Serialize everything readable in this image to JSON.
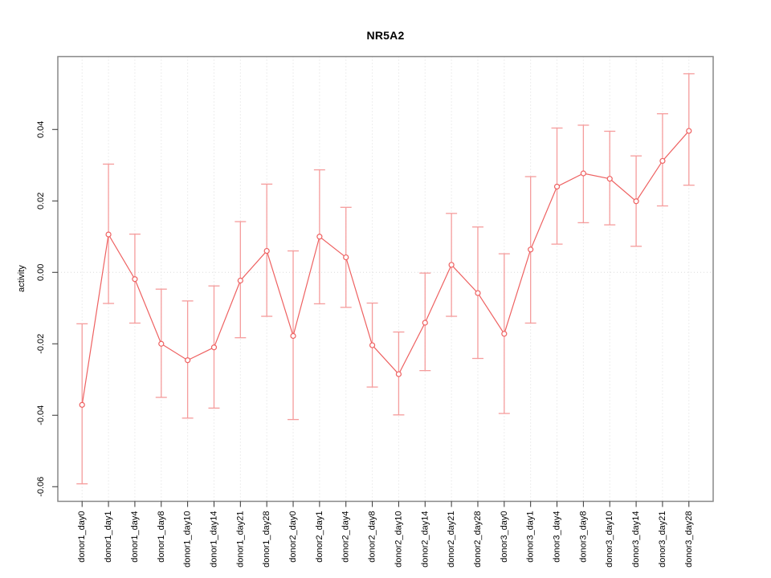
{
  "chart_data": {
    "type": "line",
    "title": "NR5A2",
    "xlabel": "",
    "ylabel": "activity",
    "categories": [
      "donor1_day0",
      "donor1_day1",
      "donor1_day4",
      "donor1_day8",
      "donor1_day10",
      "donor1_day14",
      "donor1_day21",
      "donor1_day28",
      "donor2_day0",
      "donor2_day1",
      "donor2_day4",
      "donor2_day8",
      "donor2_day10",
      "donor2_day14",
      "donor2_day21",
      "donor2_day28",
      "donor3_day0",
      "donor3_day1",
      "donor3_day4",
      "donor3_day8",
      "donor3_day10",
      "donor3_day14",
      "donor3_day21",
      "donor3_day28"
    ],
    "series": [
      {
        "name": "activity",
        "values": [
          -0.0371,
          0.0106,
          -0.0019,
          -0.02,
          -0.0246,
          -0.021,
          -0.0023,
          0.006,
          -0.0178,
          0.01,
          0.0042,
          -0.0204,
          -0.0285,
          -0.0141,
          0.0021,
          -0.0058,
          -0.0172,
          0.0064,
          0.024,
          0.0277,
          0.0262,
          0.0199,
          0.0312,
          0.0396
        ],
        "upper": [
          -0.0144,
          0.0303,
          0.0107,
          -0.0047,
          -0.008,
          -0.0038,
          0.0142,
          0.0247,
          0.006,
          0.0287,
          0.0182,
          -0.0086,
          -0.0167,
          -0.0002,
          0.0165,
          0.0127,
          0.0052,
          0.0268,
          0.0404,
          0.0412,
          0.0395,
          0.0326,
          0.0444,
          0.0556
        ],
        "lower": [
          -0.0592,
          -0.0087,
          -0.0142,
          -0.035,
          -0.0408,
          -0.038,
          -0.0183,
          -0.0123,
          -0.0412,
          -0.0088,
          -0.0098,
          -0.0321,
          -0.0399,
          -0.0275,
          -0.0123,
          -0.0241,
          -0.0395,
          -0.0142,
          0.0079,
          0.0139,
          0.0133,
          0.0073,
          0.0186,
          0.0244
        ]
      }
    ],
    "yticks": [
      -0.06,
      -0.04,
      -0.02,
      0.0,
      0.02,
      0.04
    ],
    "ytick_labels": [
      "-0.06",
      "-0.04",
      "-0.02",
      "0.00",
      "0.02",
      "0.04"
    ],
    "ylim": [
      -0.0641,
      0.0604
    ],
    "grid": {
      "vertical_per_category": true,
      "zero_line": true,
      "style": "dotted"
    },
    "legend_position": "none",
    "colors": {
      "line": "#ee6161",
      "error_bar": "#f59c9c",
      "point_fill": "#ffffff",
      "grid": "#dcdcdc",
      "box": "#878787",
      "tick": "#333333",
      "text": "#000000",
      "background": "#ffffff"
    }
  }
}
